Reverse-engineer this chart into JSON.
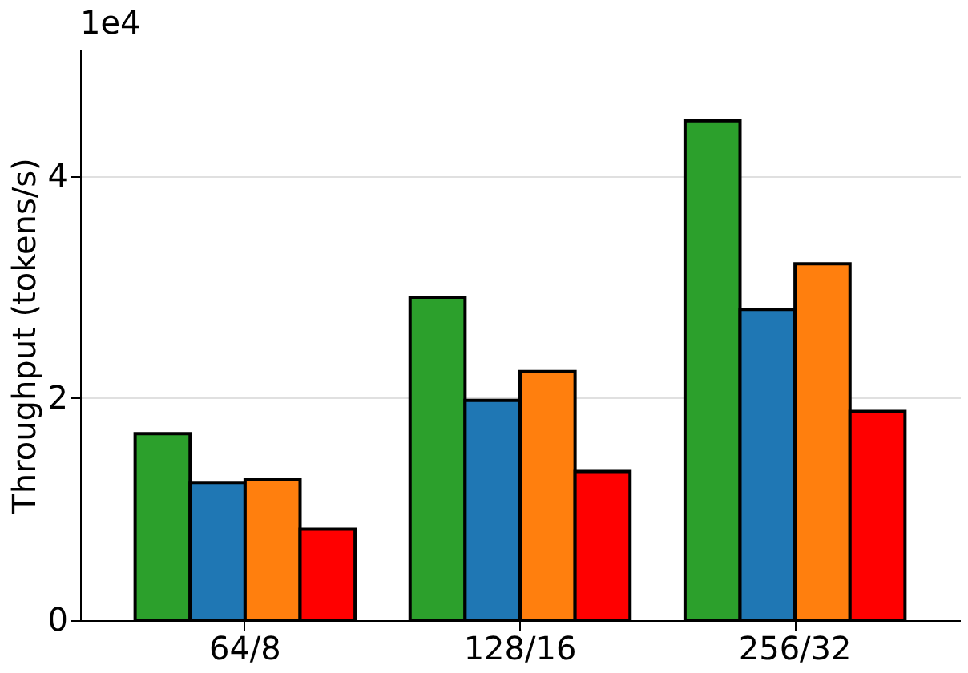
{
  "chart_data": {
    "type": "bar",
    "ylabel": "Throughput (tokens/s)",
    "categories": [
      "64/8",
      "128/16",
      "256/32"
    ],
    "series": [
      {
        "color": "#2ca02c",
        "values": [
          1.68,
          2.91,
          4.5
        ]
      },
      {
        "color": "#1f77b4",
        "values": [
          1.24,
          1.98,
          2.8
        ]
      },
      {
        "color": "#ff7f0e",
        "values": [
          1.27,
          2.24,
          3.21
        ]
      },
      {
        "color": "#ff0000",
        "values": [
          0.82,
          1.34,
          1.88
        ]
      }
    ],
    "ylim": [
      0,
      5.14
    ],
    "yticks": [
      0,
      2,
      4
    ],
    "annotations": [
      "1e4"
    ],
    "grid": "y",
    "legend": false
  }
}
